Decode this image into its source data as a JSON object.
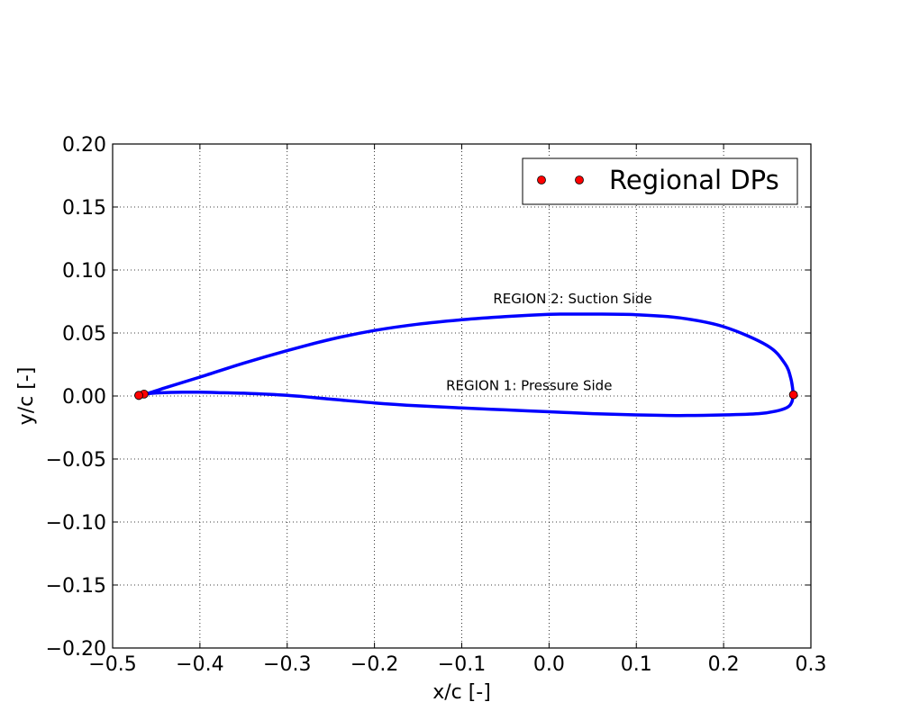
{
  "chart_data": {
    "type": "line",
    "title": "",
    "xlabel": "x/c [-]",
    "ylabel": "y/c [-]",
    "xlim": [
      -0.5,
      0.3
    ],
    "ylim": [
      -0.2,
      0.2
    ],
    "xticks": [
      "−0.5",
      "−0.4",
      "−0.3",
      "−0.2",
      "−0.1",
      "0.0",
      "0.1",
      "0.2",
      "0.3"
    ],
    "yticks": [
      "0.20",
      "0.15",
      "0.10",
      "0.05",
      "0.00",
      "−0.05",
      "−0.10",
      "−0.15",
      "−0.20"
    ],
    "grid": true,
    "legend_position": "upper-right",
    "colors": {
      "airfoil": "#0000ff",
      "points": "#ff0000"
    },
    "series": [
      {
        "kind": "line",
        "x": [
          0.28,
          0.277,
          0.27,
          0.25,
          0.2,
          0.15,
          0.1,
          0.05,
          0.02,
          0.0,
          -0.05,
          -0.1,
          -0.15,
          -0.2,
          -0.25,
          -0.3,
          -0.35,
          -0.4,
          -0.44,
          -0.46,
          -0.47,
          -0.464,
          -0.45,
          -0.42,
          -0.4,
          -0.38,
          -0.35,
          -0.3,
          -0.25,
          -0.2,
          -0.15,
          -0.1,
          -0.05,
          0.0,
          0.05,
          0.1,
          0.15,
          0.2,
          0.24,
          0.26,
          0.273,
          0.278,
          0.28
        ],
        "y": [
          0.001,
          0.014,
          0.026,
          0.04,
          0.055,
          0.062,
          0.0645,
          0.065,
          0.065,
          0.0648,
          0.063,
          0.0605,
          0.057,
          0.052,
          0.045,
          0.036,
          0.026,
          0.015,
          0.0065,
          0.002,
          0.0005,
          0.0015,
          0.0024,
          0.003,
          0.003,
          0.0027,
          0.0022,
          0.0005,
          -0.0025,
          -0.0055,
          -0.0078,
          -0.0095,
          -0.011,
          -0.0125,
          -0.014,
          -0.015,
          -0.0155,
          -0.015,
          -0.014,
          -0.012,
          -0.009,
          -0.005,
          0.001
        ]
      },
      {
        "kind": "points",
        "name": "Regional DPs",
        "x": [
          0.28,
          -0.47,
          -0.464,
          -0.47
        ],
        "y": [
          0.001,
          0.0005,
          0.0015,
          0.0005
        ]
      }
    ],
    "annotations": [
      {
        "text": "REGION 2: Suction Side",
        "x": -0.064,
        "y": 0.0735
      },
      {
        "text": "REGION 1: Pressure Side",
        "x": -0.118,
        "y": 0.0045
      }
    ]
  }
}
